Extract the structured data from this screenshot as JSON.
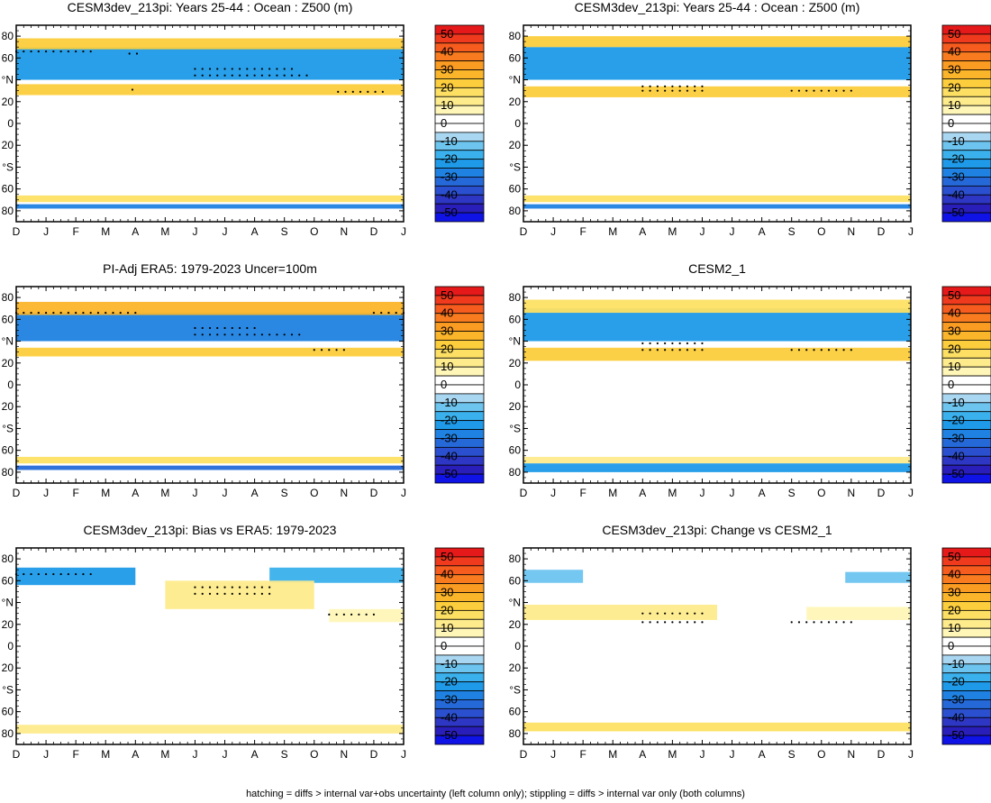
{
  "figure": {
    "footer": "hatching = diffs > internal var+obs uncertainty (left column only); stippling = diffs > internal var only (both columns)"
  },
  "chart_data": {
    "type": "heatmap",
    "x_tick_labels": [
      "D",
      "J",
      "F",
      "M",
      "A",
      "M",
      "J",
      "J",
      "A",
      "S",
      "O",
      "N",
      "D",
      "J"
    ],
    "y_tick_labels": [
      "80",
      "60",
      "°N",
      "20",
      "0",
      "20",
      "°S",
      "60",
      "80"
    ],
    "y_tick_values": [
      80,
      60,
      40,
      20,
      0,
      -20,
      -40,
      -60,
      -80
    ],
    "ylim": [
      -90,
      90
    ],
    "colorbar": {
      "labels": [
        "50",
        "40",
        "30",
        "20",
        "10",
        "0",
        "-10",
        "-20",
        "-30",
        "-40",
        "-50"
      ],
      "levels": [
        55,
        50,
        45,
        40,
        35,
        30,
        25,
        20,
        15,
        10,
        5,
        0,
        -5,
        -10,
        -15,
        -20,
        -25,
        -30,
        -35,
        -40,
        -45,
        -50,
        -55
      ],
      "colors": [
        "#e51919",
        "#ef3a1d",
        "#f65c1e",
        "#f87c1f",
        "#fa9b22",
        "#fbb52a",
        "#fccd3c",
        "#fde063",
        "#feeb8c",
        "#fff6b8",
        "#ffffff",
        "#ffffff",
        "#a9d6f0",
        "#6cc4ef",
        "#3ab0ec",
        "#1e9ae8",
        "#1f82e2",
        "#2569d9",
        "#2a50cf",
        "#2d37c4",
        "#2a1eba",
        "#0f13e6"
      ]
    },
    "panels": [
      {
        "title": "CESM3dev_213pi: Years 25-44 : Ocean : Z500 (m)",
        "bands": [
          {
            "lat": [
              26,
              36
            ],
            "val": 24,
            "x": [
              0,
              13
            ]
          },
          {
            "lat": [
              40,
              70
            ],
            "val": -22,
            "x": [
              0,
              13
            ]
          },
          {
            "lat": [
              68,
              78
            ],
            "val": 22,
            "x": [
              0,
              13
            ]
          },
          {
            "lat": [
              -72,
              -66
            ],
            "val": 20,
            "x": [
              0,
              13
            ]
          },
          {
            "lat": [
              -78,
              -74
            ],
            "val": -28,
            "x": [
              0,
              13
            ]
          }
        ],
        "stipples": [
          {
            "lat": 66,
            "x": [
              0,
              2.5
            ]
          },
          {
            "lat": 64,
            "x": [
              3.8,
              4.2
            ]
          },
          {
            "lat": 50,
            "x": [
              6,
              9.3
            ]
          },
          {
            "lat": 44,
            "x": [
              6,
              9.8
            ]
          },
          {
            "lat": 29,
            "x": [
              10.8,
              12.4
            ]
          },
          {
            "lat": 31,
            "x": [
              3.9,
              4.1
            ]
          }
        ]
      },
      {
        "title": "CESM3dev_213pi: Years 25-44 : Ocean : Z500 (m)",
        "bands": [
          {
            "lat": [
              24,
              34
            ],
            "val": 24,
            "x": [
              0,
              13
            ]
          },
          {
            "lat": [
              40,
              70
            ],
            "val": -24,
            "x": [
              0,
              13
            ]
          },
          {
            "lat": [
              70,
              80
            ],
            "val": 21,
            "x": [
              0,
              13
            ]
          },
          {
            "lat": [
              -72,
              -66
            ],
            "val": 20,
            "x": [
              0,
              13
            ]
          },
          {
            "lat": [
              -78,
              -74
            ],
            "val": -26,
            "x": [
              0,
              13
            ]
          }
        ],
        "stipples": [
          {
            "lat": 34,
            "x": [
              4,
              6
            ]
          },
          {
            "lat": 30,
            "x": [
              4,
              6
            ]
          },
          {
            "lat": 30,
            "x": [
              9,
              11
            ]
          }
        ]
      },
      {
        "title": "PI-Adj ERA5: 1979-2023 Uncer=100m",
        "bands": [
          {
            "lat": [
              26,
              34
            ],
            "val": 22,
            "x": [
              0,
              13
            ]
          },
          {
            "lat": [
              40,
              66
            ],
            "val": -28,
            "x": [
              0,
              13
            ]
          },
          {
            "lat": [
              64,
              76
            ],
            "val": 26,
            "x": [
              0,
              13
            ]
          },
          {
            "lat": [
              -72,
              -66
            ],
            "val": 18,
            "x": [
              0,
              13
            ]
          },
          {
            "lat": [
              -78,
              -74
            ],
            "val": -32,
            "x": [
              0,
              13
            ]
          }
        ],
        "stipples": [
          {
            "lat": 66,
            "x": [
              0,
              4
            ]
          },
          {
            "lat": 66,
            "x": [
              12,
              13
            ]
          },
          {
            "lat": 52,
            "x": [
              6,
              8
            ]
          },
          {
            "lat": 46,
            "x": [
              6,
              9.6
            ]
          },
          {
            "lat": 32,
            "x": [
              10,
              11
            ]
          }
        ]
      },
      {
        "title": "CESM2_1",
        "bands": [
          {
            "lat": [
              22,
              34
            ],
            "val": 23,
            "x": [
              0,
              13
            ]
          },
          {
            "lat": [
              40,
              70
            ],
            "val": -22,
            "x": [
              0,
              13
            ]
          },
          {
            "lat": [
              66,
              78
            ],
            "val": 18,
            "x": [
              0,
              13
            ]
          },
          {
            "lat": [
              -72,
              -66
            ],
            "val": 14,
            "x": [
              0,
              13
            ]
          },
          {
            "lat": [
              -80,
              -72
            ],
            "val": -24,
            "x": [
              0,
              13
            ]
          }
        ],
        "stipples": [
          {
            "lat": 38,
            "x": [
              4,
              6
            ]
          },
          {
            "lat": 32,
            "x": [
              4,
              6
            ]
          },
          {
            "lat": 32,
            "x": [
              9,
              11
            ]
          }
        ]
      },
      {
        "title": "CESM3dev_213pi: Bias vs ERA5: 1979-2023",
        "bands": [
          {
            "lat": [
              56,
              72
            ],
            "val": -20,
            "x": [
              0,
              4
            ]
          },
          {
            "lat": [
              58,
              72
            ],
            "val": -18,
            "x": [
              8.5,
              13
            ]
          },
          {
            "lat": [
              34,
              60
            ],
            "val": 14,
            "x": [
              5,
              10
            ]
          },
          {
            "lat": [
              22,
              34
            ],
            "val": 8,
            "x": [
              10.5,
              13
            ]
          },
          {
            "lat": [
              -80,
              -72
            ],
            "val": 14,
            "x": [
              0,
              13
            ]
          }
        ],
        "stipples": [
          {
            "lat": 66,
            "x": [
              0,
              2.5
            ]
          },
          {
            "lat": 54,
            "x": [
              6,
              8.6
            ]
          },
          {
            "lat": 48,
            "x": [
              6,
              8.6
            ]
          },
          {
            "lat": 29,
            "x": [
              10.5,
              12
            ]
          }
        ]
      },
      {
        "title": "CESM3dev_213pi: Change vs CESM2_1",
        "bands": [
          {
            "lat": [
              58,
              70
            ],
            "val": -14,
            "x": [
              0,
              2
            ]
          },
          {
            "lat": [
              58,
              68
            ],
            "val": -12,
            "x": [
              10.8,
              13
            ]
          },
          {
            "lat": [
              24,
              38
            ],
            "val": 12,
            "x": [
              0,
              6.5
            ]
          },
          {
            "lat": [
              24,
              36
            ],
            "val": 10,
            "x": [
              9.5,
              13
            ]
          },
          {
            "lat": [
              -78,
              -70
            ],
            "val": 16,
            "x": [
              0,
              13
            ]
          }
        ],
        "stipples": [
          {
            "lat": 30,
            "x": [
              4,
              6
            ]
          },
          {
            "lat": 22,
            "x": [
              4,
              6
            ]
          },
          {
            "lat": 22,
            "x": [
              9,
              11
            ]
          }
        ]
      }
    ]
  }
}
